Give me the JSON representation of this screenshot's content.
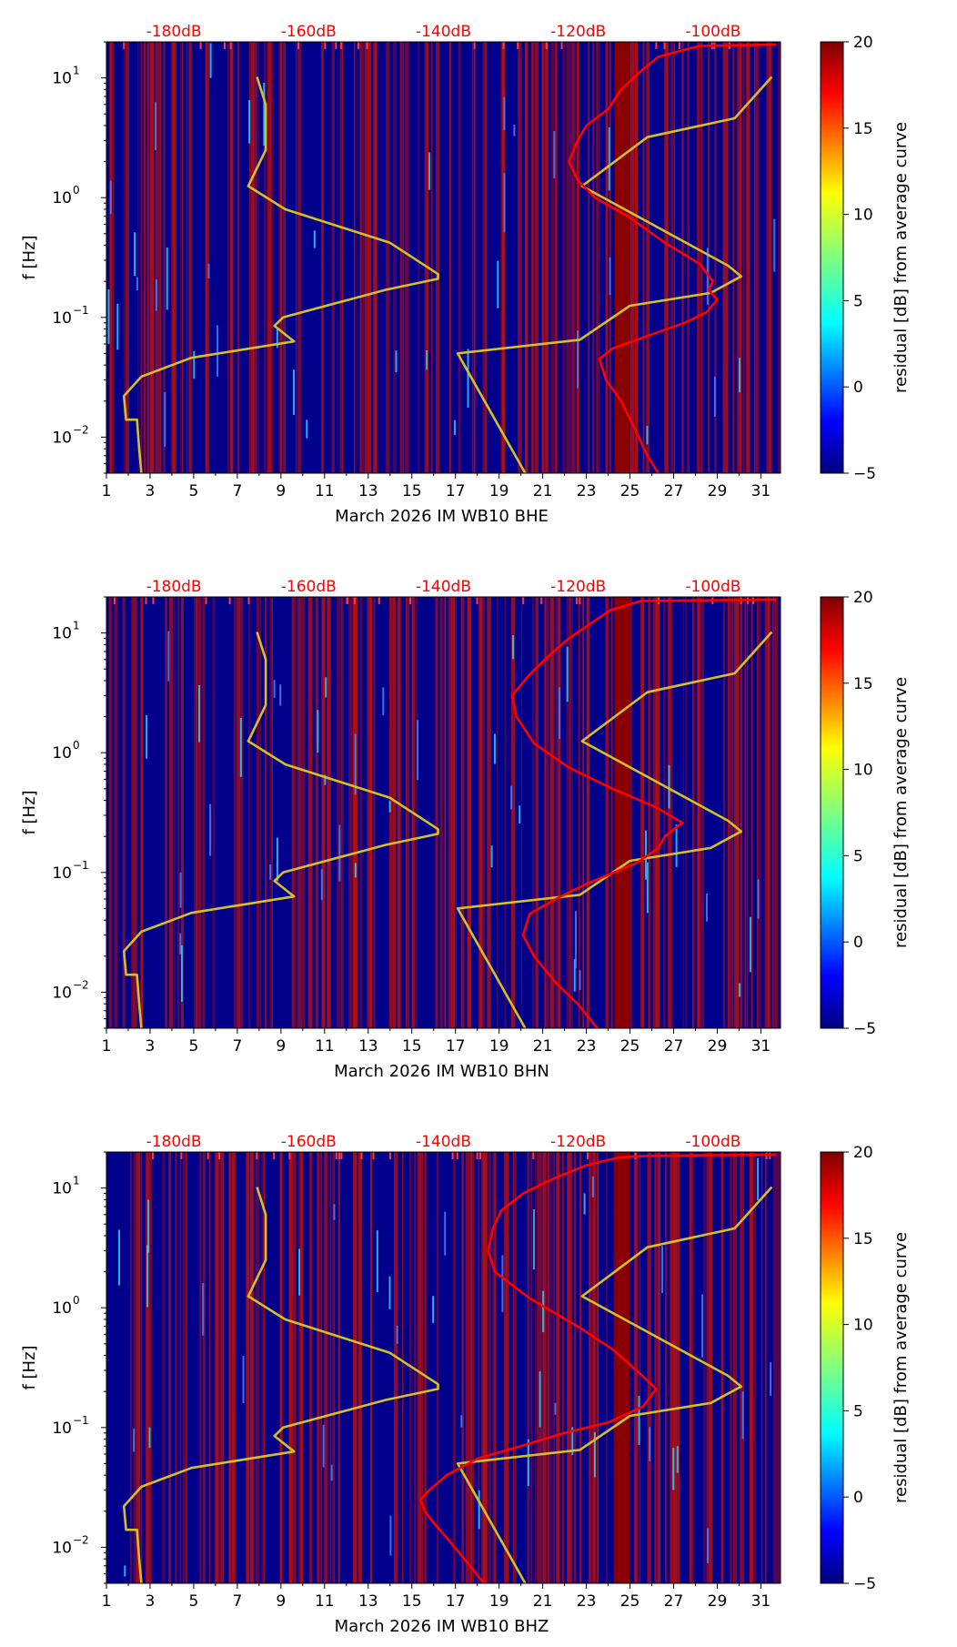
{
  "colorbar": {
    "label": "residual [dB] from average curve",
    "ticks": [
      "20",
      "15",
      "10",
      "5",
      "0",
      "−5"
    ],
    "range": [
      -5,
      20
    ],
    "colormap": "jet"
  },
  "chart_data": [
    {
      "type": "heatmap",
      "channel": "BHE",
      "xlabel": "March 2026 IM WB10  BHE",
      "ylabel": "f [Hz]",
      "x_ticks": [
        "1",
        "3",
        "5",
        "7",
        "9",
        "11",
        "13",
        "15",
        "17",
        "19",
        "21",
        "23",
        "25",
        "27",
        "29",
        "31"
      ],
      "y_ticks": [
        "10^1",
        "10^0",
        "10^-1",
        "10^-2"
      ],
      "db_ticks": [
        "-180dB",
        "-160dB",
        "-140dB",
        "-120dB",
        "-100dB"
      ],
      "xlim": [
        1,
        31.9
      ],
      "ylim_hz": [
        0.005,
        20
      ],
      "log_y": true,
      "db_axis_range": [
        -190,
        -90
      ],
      "dark_red_band_days": [
        24.3,
        25.0
      ],
      "red_curve_color": "#ff0000",
      "yellow_curve_color": "#d4c025",
      "yellow_curve": [
        [
          2.6,
          0.005
        ],
        [
          2.5,
          0.008
        ],
        [
          2.4,
          0.014
        ],
        [
          1.9,
          0.014
        ],
        [
          1.8,
          0.022
        ],
        [
          2.6,
          0.032
        ],
        [
          4.9,
          0.046
        ],
        [
          9.6,
          0.063
        ],
        [
          8.7,
          0.085
        ],
        [
          9.1,
          0.1
        ],
        [
          13.8,
          0.17
        ],
        [
          16.2,
          0.21
        ],
        [
          16.2,
          0.23
        ],
        [
          14.0,
          0.42
        ],
        [
          9.2,
          0.8
        ],
        [
          7.5,
          1.25
        ],
        [
          8.3,
          2.5
        ],
        [
          8.3,
          6
        ],
        [
          7.9,
          10.2
        ]
      ],
      "yellow_curve_2": [
        [
          20.2,
          0.005
        ],
        [
          17.1,
          0.05
        ],
        [
          22.7,
          0.065
        ],
        [
          25.0,
          0.125
        ],
        [
          28.7,
          0.16
        ],
        [
          30.1,
          0.22
        ],
        [
          29.5,
          0.27
        ],
        [
          22.8,
          1.25
        ],
        [
          25.8,
          3.2
        ],
        [
          29.8,
          4.6
        ],
        [
          31.5,
          10.2
        ]
      ],
      "red_curve": [
        [
          26.3,
          0.005
        ],
        [
          25.8,
          0.007
        ],
        [
          25.2,
          0.012
        ],
        [
          24.6,
          0.02
        ],
        [
          23.9,
          0.03
        ],
        [
          23.6,
          0.045
        ],
        [
          24.2,
          0.055
        ],
        [
          25.8,
          0.07
        ],
        [
          27.5,
          0.09
        ],
        [
          28.5,
          0.11
        ],
        [
          29.0,
          0.14
        ],
        [
          28.6,
          0.17
        ],
        [
          28.8,
          0.2
        ],
        [
          28.2,
          0.28
        ],
        [
          26.6,
          0.42
        ],
        [
          24.9,
          0.7
        ],
        [
          23.4,
          1.0
        ],
        [
          22.6,
          1.4
        ],
        [
          22.2,
          2.0
        ],
        [
          22.6,
          3.0
        ],
        [
          23.0,
          4.0
        ],
        [
          24.0,
          5.5
        ],
        [
          24.6,
          8.0
        ],
        [
          25.4,
          11
        ],
        [
          26.3,
          15
        ],
        [
          28.2,
          18.5
        ],
        [
          31.7,
          19
        ]
      ]
    },
    {
      "type": "heatmap",
      "channel": "BHN",
      "xlabel": "March 2026 IM WB10  BHN",
      "ylabel": "f [Hz]",
      "x_ticks": [
        "1",
        "3",
        "5",
        "7",
        "9",
        "11",
        "13",
        "15",
        "17",
        "19",
        "21",
        "23",
        "25",
        "27",
        "29",
        "31"
      ],
      "y_ticks": [
        "10^1",
        "10^0",
        "10^-1",
        "10^-2"
      ],
      "db_ticks": [
        "-180dB",
        "-160dB",
        "-140dB",
        "-120dB",
        "-100dB"
      ],
      "xlim": [
        1,
        31.9
      ],
      "ylim_hz": [
        0.005,
        20
      ],
      "log_y": true,
      "db_axis_range": [
        -190,
        -90
      ],
      "dark_red_band_days": [
        24.3,
        25.0
      ],
      "red_curve_color": "#ff0000",
      "yellow_curve_color": "#d4c025",
      "yellow_curve": [
        [
          2.6,
          0.005
        ],
        [
          2.5,
          0.008
        ],
        [
          2.4,
          0.014
        ],
        [
          1.9,
          0.014
        ],
        [
          1.8,
          0.022
        ],
        [
          2.6,
          0.032
        ],
        [
          4.9,
          0.046
        ],
        [
          9.6,
          0.063
        ],
        [
          8.7,
          0.085
        ],
        [
          9.1,
          0.1
        ],
        [
          13.8,
          0.17
        ],
        [
          16.2,
          0.21
        ],
        [
          16.2,
          0.23
        ],
        [
          14.0,
          0.42
        ],
        [
          9.2,
          0.8
        ],
        [
          7.5,
          1.25
        ],
        [
          8.3,
          2.5
        ],
        [
          8.3,
          6
        ],
        [
          7.9,
          10.2
        ]
      ],
      "yellow_curve_2": [
        [
          20.2,
          0.005
        ],
        [
          17.1,
          0.05
        ],
        [
          22.7,
          0.065
        ],
        [
          25.0,
          0.125
        ],
        [
          28.7,
          0.16
        ],
        [
          30.1,
          0.22
        ],
        [
          29.5,
          0.27
        ],
        [
          22.8,
          1.25
        ],
        [
          25.8,
          3.2
        ],
        [
          29.8,
          4.6
        ],
        [
          31.5,
          10.2
        ]
      ],
      "red_curve": [
        [
          23.5,
          0.005
        ],
        [
          22.6,
          0.008
        ],
        [
          21.6,
          0.012
        ],
        [
          20.6,
          0.02
        ],
        [
          20.1,
          0.03
        ],
        [
          20.4,
          0.045
        ],
        [
          21.6,
          0.06
        ],
        [
          23.0,
          0.08
        ],
        [
          25.3,
          0.12
        ],
        [
          26.3,
          0.16
        ],
        [
          26.6,
          0.2
        ],
        [
          27.4,
          0.26
        ],
        [
          26.2,
          0.35
        ],
        [
          24.2,
          0.5
        ],
        [
          22.2,
          0.75
        ],
        [
          20.6,
          1.2
        ],
        [
          19.8,
          2.0
        ],
        [
          19.6,
          3.0
        ],
        [
          20.4,
          4.5
        ],
        [
          21.3,
          6.5
        ],
        [
          22.2,
          9
        ],
        [
          23.2,
          12
        ],
        [
          24.1,
          15.5
        ],
        [
          25.5,
          18.5
        ],
        [
          31.7,
          19
        ]
      ]
    },
    {
      "type": "heatmap",
      "channel": "BHZ",
      "xlabel": "March 2026 IM WB10  BHZ",
      "ylabel": "f [Hz]",
      "x_ticks": [
        "1",
        "3",
        "5",
        "7",
        "9",
        "11",
        "13",
        "15",
        "17",
        "19",
        "21",
        "23",
        "25",
        "27",
        "29",
        "31"
      ],
      "y_ticks": [
        "10^1",
        "10^0",
        "10^-1",
        "10^-2"
      ],
      "db_ticks": [
        "-180dB",
        "-160dB",
        "-140dB",
        "-120dB",
        "-100dB"
      ],
      "xlim": [
        1,
        31.9
      ],
      "ylim_hz": [
        0.005,
        20
      ],
      "log_y": true,
      "db_axis_range": [
        -190,
        -90
      ],
      "dark_red_band_days": [
        24.3,
        25.0
      ],
      "red_curve_color": "#ff0000",
      "yellow_curve_color": "#d4c025",
      "yellow_curve": [
        [
          2.6,
          0.005
        ],
        [
          2.5,
          0.008
        ],
        [
          2.4,
          0.014
        ],
        [
          1.9,
          0.014
        ],
        [
          1.8,
          0.022
        ],
        [
          2.6,
          0.032
        ],
        [
          4.9,
          0.046
        ],
        [
          9.6,
          0.063
        ],
        [
          8.7,
          0.085
        ],
        [
          9.1,
          0.1
        ],
        [
          13.8,
          0.17
        ],
        [
          16.2,
          0.21
        ],
        [
          16.2,
          0.23
        ],
        [
          14.0,
          0.42
        ],
        [
          9.2,
          0.8
        ],
        [
          7.5,
          1.25
        ],
        [
          8.3,
          2.5
        ],
        [
          8.3,
          6
        ],
        [
          7.9,
          10.2
        ]
      ],
      "yellow_curve_2": [
        [
          20.2,
          0.005
        ],
        [
          17.1,
          0.05
        ],
        [
          22.7,
          0.065
        ],
        [
          25.0,
          0.125
        ],
        [
          28.7,
          0.16
        ],
        [
          30.1,
          0.22
        ],
        [
          29.5,
          0.27
        ],
        [
          22.8,
          1.25
        ],
        [
          25.8,
          3.2
        ],
        [
          29.8,
          4.6
        ],
        [
          31.5,
          10.2
        ]
      ],
      "red_curve": [
        [
          18.3,
          0.005
        ],
        [
          17.4,
          0.008
        ],
        [
          16.6,
          0.012
        ],
        [
          16.0,
          0.016
        ],
        [
          15.6,
          0.02
        ],
        [
          15.4,
          0.025
        ],
        [
          15.8,
          0.03
        ],
        [
          16.6,
          0.04
        ],
        [
          18.0,
          0.055
        ],
        [
          20.0,
          0.07
        ],
        [
          22.0,
          0.09
        ],
        [
          24.0,
          0.11
        ],
        [
          25.6,
          0.15
        ],
        [
          26.2,
          0.21
        ],
        [
          25.3,
          0.3
        ],
        [
          24.2,
          0.45
        ],
        [
          22.6,
          0.7
        ],
        [
          20.4,
          1.2
        ],
        [
          18.8,
          2.0
        ],
        [
          18.5,
          3.0
        ],
        [
          18.7,
          4.5
        ],
        [
          19.1,
          6.5
        ],
        [
          20.1,
          9
        ],
        [
          21.5,
          12
        ],
        [
          23.0,
          15.5
        ],
        [
          24.5,
          18
        ],
        [
          26.0,
          18.6
        ],
        [
          31.7,
          19
        ]
      ]
    }
  ]
}
